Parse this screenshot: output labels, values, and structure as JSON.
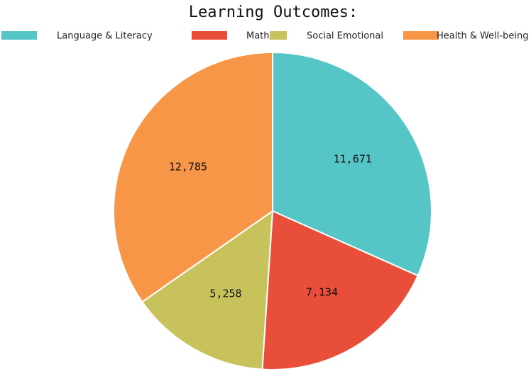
{
  "chart_data": {
    "type": "pie",
    "title": "Learning Outcomes:",
    "categories": [
      "Language & Literacy",
      "Math",
      "Social Emotional",
      "Health & Well-being"
    ],
    "values": [
      11671,
      7134,
      5258,
      12785
    ],
    "value_labels": [
      "11,671",
      "7,134",
      "5,258",
      "12,785"
    ],
    "colors": [
      "#56c5c5",
      "#e84e3a",
      "#c8c25d",
      "#f79646"
    ],
    "legend": "top"
  }
}
